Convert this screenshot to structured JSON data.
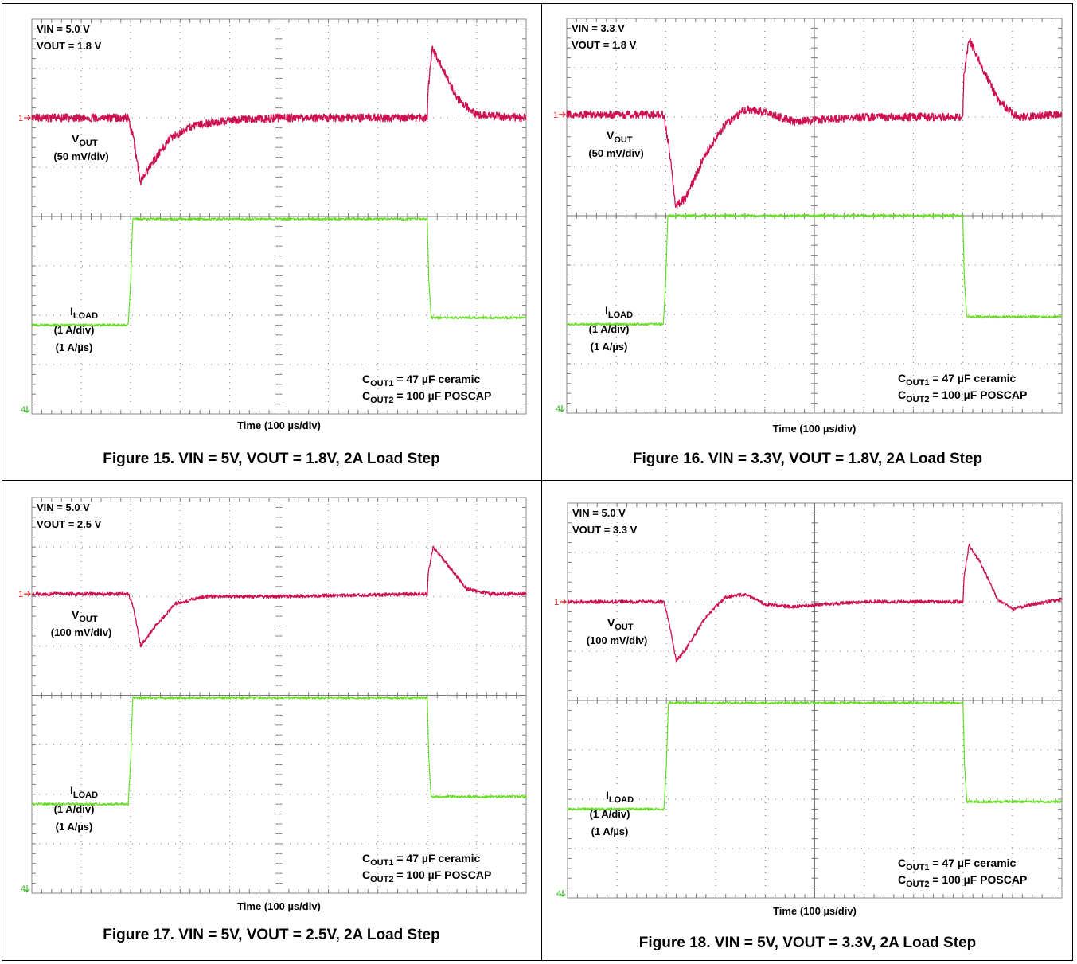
{
  "panels": [
    {
      "params": [
        "VIN = 5.0 V",
        "VOUT = 1.8 V"
      ],
      "vout_main": "V",
      "vout_sub": "OUT",
      "vout_scale": "(50 mV/div)",
      "iload_main": "I",
      "iload_sub": "LOAD",
      "iload_scale": "(1 A/div)",
      "iload_slew": "(1 A/µs)",
      "cout1_main": "C",
      "cout1_sub": "OUT1",
      "cout1_text": " = 47 µF ceramic",
      "cout2_main": "C",
      "cout2_sub": "OUT2",
      "cout2_text": " = 100 µF POSCAP",
      "time_label": "Time (100 µs/div)",
      "caption": "Figure 15. VIN = 5V, VOUT = 1.8V, 2A Load Step",
      "ch1_marker": "1",
      "ch4_marker": "4"
    },
    {
      "params": [
        "VIN = 3.3 V",
        "VOUT = 1.8 V"
      ],
      "vout_main": "V",
      "vout_sub": "OUT",
      "vout_scale": "(50 mV/div)",
      "iload_main": "I",
      "iload_sub": "LOAD",
      "iload_scale": "(1 A/div)",
      "iload_slew": "(1 A/µs)",
      "cout1_main": "C",
      "cout1_sub": "OUT1",
      "cout1_text": " = 47 µF ceramic",
      "cout2_main": "C",
      "cout2_sub": "OUT2",
      "cout2_text": " = 100 µF POSCAP",
      "time_label": "Time (100 µs/div)",
      "caption": "Figure 16. VIN = 3.3V, VOUT = 1.8V, 2A Load Step",
      "ch1_marker": "1",
      "ch4_marker": "4"
    },
    {
      "params": [
        "VIN = 5.0 V",
        "VOUT = 2.5 V"
      ],
      "vout_main": "V",
      "vout_sub": "OUT",
      "vout_scale": "(100 mV/div)",
      "iload_main": "I",
      "iload_sub": "LOAD",
      "iload_scale": "(1 A/div)",
      "iload_slew": "(1 A/µs)",
      "cout1_main": "C",
      "cout1_sub": "OUT1",
      "cout1_text": " = 47 µF ceramic",
      "cout2_main": "C",
      "cout2_sub": "OUT2",
      "cout2_text": " = 100 µF POSCAP",
      "time_label": "Time (100 µs/div)",
      "caption": "Figure 17. VIN = 5V, VOUT = 2.5V, 2A Load Step",
      "ch1_marker": "1",
      "ch4_marker": "4"
    },
    {
      "params": [
        "VIN = 5.0 V",
        "VOUT = 3.3 V"
      ],
      "vout_main": "V",
      "vout_sub": "OUT",
      "vout_scale": "(100 mV/div)",
      "iload_main": "I",
      "iload_sub": "LOAD",
      "iload_scale": "(1 A/div)",
      "iload_slew": "(1 A/µs)",
      "cout1_main": "C",
      "cout1_sub": "OUT1",
      "cout1_text": " = 47 µF ceramic",
      "cout2_main": "C",
      "cout2_sub": "OUT2",
      "cout2_text": " = 100 µF POSCAP",
      "time_label": "Time (100 µs/div)",
      "caption": "Figure 18. VIN = 5V, VOUT = 3.3V, 2A Load Step",
      "ch1_marker": "1",
      "ch4_marker": "4"
    }
  ],
  "colors": {
    "vout": "#cc1050",
    "iload": "#66dd22",
    "grid": "#7a7a7a",
    "frame": "#8a8a8a",
    "marker1": "#e01b1b",
    "marker4": "#33bb22"
  },
  "chart_data": [
    {
      "type": "line",
      "x_unit": "div (100 µs/div)",
      "xlim": [
        0,
        10
      ],
      "ylim": [
        -4,
        4
      ],
      "series": [
        {
          "name": "VOUT",
          "points": [
            [
              0,
              2.0
            ],
            [
              1.95,
              2.0
            ],
            [
              2.05,
              1.6
            ],
            [
              2.2,
              0.7
            ],
            [
              2.45,
              1.1
            ],
            [
              2.8,
              1.6
            ],
            [
              3.3,
              1.85
            ],
            [
              4.0,
              1.95
            ],
            [
              5.0,
              2.0
            ],
            [
              8.0,
              2.0
            ],
            [
              8.02,
              2.6
            ],
            [
              8.1,
              3.4
            ],
            [
              8.3,
              3.0
            ],
            [
              8.6,
              2.4
            ],
            [
              9.0,
              2.05
            ],
            [
              10,
              2.0
            ]
          ]
        },
        {
          "name": "ILOAD",
          "points": [
            [
              0,
              -2.2
            ],
            [
              1.95,
              -2.2
            ],
            [
              2.0,
              -1.3
            ],
            [
              2.04,
              -0.05
            ],
            [
              3.0,
              -0.05
            ],
            [
              8.0,
              -0.05
            ],
            [
              8.03,
              -1.3
            ],
            [
              8.08,
              -2.05
            ],
            [
              10,
              -2.05
            ]
          ]
        }
      ]
    },
    {
      "type": "line",
      "x_unit": "div (100 µs/div)",
      "xlim": [
        0,
        10
      ],
      "ylim": [
        -4,
        4
      ],
      "series": [
        {
          "name": "VOUT",
          "points": [
            [
              0,
              2.05
            ],
            [
              1.95,
              2.05
            ],
            [
              2.05,
              1.5
            ],
            [
              2.2,
              0.2
            ],
            [
              2.4,
              0.35
            ],
            [
              2.8,
              1.25
            ],
            [
              3.2,
              1.85
            ],
            [
              3.6,
              2.15
            ],
            [
              4.0,
              2.1
            ],
            [
              4.6,
              1.9
            ],
            [
              5.2,
              1.95
            ],
            [
              6.0,
              2.0
            ],
            [
              8.0,
              2.0
            ],
            [
              8.02,
              2.8
            ],
            [
              8.12,
              3.6
            ],
            [
              8.35,
              3.1
            ],
            [
              8.7,
              2.35
            ],
            [
              9.1,
              2.0
            ],
            [
              10,
              2.05
            ]
          ]
        },
        {
          "name": "ILOAD",
          "points": [
            [
              0,
              -2.2
            ],
            [
              1.95,
              -2.2
            ],
            [
              2.0,
              -1.3
            ],
            [
              2.04,
              0.0
            ],
            [
              3.0,
              0.0
            ],
            [
              8.0,
              0.0
            ],
            [
              8.03,
              -1.3
            ],
            [
              8.08,
              -2.05
            ],
            [
              10,
              -2.05
            ]
          ]
        }
      ]
    },
    {
      "type": "line",
      "x_unit": "div (100 µs/div)",
      "xlim": [
        0,
        10
      ],
      "ylim": [
        -4,
        4
      ],
      "series": [
        {
          "name": "VOUT",
          "points": [
            [
              0,
              2.05
            ],
            [
              1.95,
              2.05
            ],
            [
              2.05,
              1.8
            ],
            [
              2.2,
              1.0
            ],
            [
              2.5,
              1.4
            ],
            [
              2.9,
              1.85
            ],
            [
              3.5,
              2.0
            ],
            [
              5.0,
              2.0
            ],
            [
              8.0,
              2.05
            ],
            [
              8.02,
              2.5
            ],
            [
              8.12,
              3.0
            ],
            [
              8.4,
              2.65
            ],
            [
              8.8,
              2.15
            ],
            [
              9.3,
              2.05
            ],
            [
              10,
              2.05
            ]
          ]
        },
        {
          "name": "ILOAD",
          "points": [
            [
              0,
              -2.2
            ],
            [
              1.95,
              -2.2
            ],
            [
              2.0,
              -1.3
            ],
            [
              2.04,
              -0.05
            ],
            [
              3.0,
              -0.05
            ],
            [
              8.0,
              -0.05
            ],
            [
              8.03,
              -1.3
            ],
            [
              8.08,
              -2.05
            ],
            [
              10,
              -2.05
            ]
          ]
        }
      ]
    },
    {
      "type": "line",
      "x_unit": "div (100 µs/div)",
      "xlim": [
        0,
        10
      ],
      "ylim": [
        -4,
        4
      ],
      "series": [
        {
          "name": "VOUT",
          "points": [
            [
              0,
              2.0
            ],
            [
              1.95,
              2.0
            ],
            [
              2.05,
              1.6
            ],
            [
              2.2,
              0.8
            ],
            [
              2.4,
              1.05
            ],
            [
              2.8,
              1.7
            ],
            [
              3.2,
              2.1
            ],
            [
              3.6,
              2.15
            ],
            [
              4.0,
              1.95
            ],
            [
              4.5,
              1.9
            ],
            [
              5.2,
              1.95
            ],
            [
              6.0,
              2.0
            ],
            [
              8.0,
              2.0
            ],
            [
              8.02,
              2.5
            ],
            [
              8.12,
              3.15
            ],
            [
              8.35,
              2.8
            ],
            [
              8.7,
              2.05
            ],
            [
              9.0,
              1.85
            ],
            [
              9.4,
              1.95
            ],
            [
              10,
              2.05
            ]
          ]
        },
        {
          "name": "ILOAD",
          "points": [
            [
              0,
              -2.2
            ],
            [
              1.95,
              -2.2
            ],
            [
              2.0,
              -1.3
            ],
            [
              2.04,
              -0.05
            ],
            [
              3.0,
              -0.05
            ],
            [
              8.0,
              -0.05
            ],
            [
              8.03,
              -1.3
            ],
            [
              8.08,
              -2.05
            ],
            [
              10,
              -2.05
            ]
          ]
        }
      ]
    }
  ]
}
